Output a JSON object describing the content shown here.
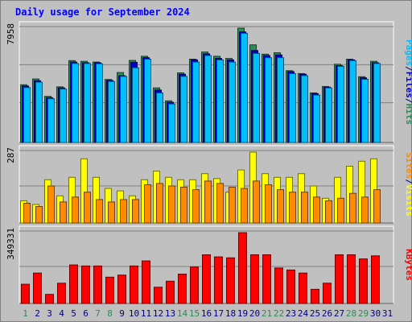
{
  "chart_data": {
    "type": "bar",
    "title": "Daily usage for September 2024",
    "categories": [
      "1",
      "2",
      "3",
      "4",
      "5",
      "6",
      "7",
      "8",
      "9",
      "10",
      "11",
      "12",
      "13",
      "14",
      "15",
      "16",
      "17",
      "18",
      "19",
      "20",
      "21",
      "22",
      "23",
      "24",
      "25",
      "26",
      "27",
      "28",
      "29",
      "30",
      "31"
    ],
    "weekend_days": [
      "1",
      "7",
      "8",
      "14",
      "15",
      "21",
      "22",
      "28",
      "29"
    ],
    "panels": [
      {
        "name": "hits-files-pages",
        "ymax_label": "7958",
        "ylim": [
          0,
          7958
        ],
        "axis_labels": [
          "Pages",
          "Files",
          "Hits"
        ],
        "series": [
          {
            "name": "Hits",
            "color": "#2e8b57",
            "values": [
              4020,
              4420,
              3210,
              3870,
              5700,
              5650,
              5600,
              4390,
              4870,
              5710,
              6000,
              3800,
              2900,
              4850,
              5800,
              6300,
              6000,
              5850,
              7958,
              6800,
              6150,
              6250,
              5000,
              4800,
              3450,
              3900,
              5450,
              5800,
              4580,
              5650,
              null
            ]
          },
          {
            "name": "Files",
            "color": "#0000cd",
            "values": [
              3930,
              4300,
              3120,
              3800,
              5600,
              5550,
              5550,
              4320,
              4650,
              5580,
              5900,
              3650,
              2800,
              4750,
              5750,
              6170,
              5850,
              5750,
              7700,
              6400,
              6050,
              6100,
              4930,
              4750,
              3400,
              3850,
              5350,
              5750,
              4500,
              5550,
              null
            ]
          },
          {
            "name": "Pages",
            "color": "#00bfff",
            "values": [
              3820,
              4200,
              3050,
              3720,
              5500,
              5500,
              5480,
              4250,
              4600,
              5200,
              5800,
              3450,
              2680,
              4600,
              5600,
              6050,
              5750,
              5600,
              7600,
              6200,
              5900,
              5900,
              4800,
              4650,
              3300,
              3800,
              5300,
              5700,
              4400,
              5500,
              null
            ]
          }
        ]
      },
      {
        "name": "visits-sites",
        "ymax_label": "287",
        "ylim": [
          0,
          287
        ],
        "axis_labels": [
          "Sites",
          "Visits"
        ],
        "series": [
          {
            "name": "Visits",
            "color": "#ffff00",
            "values": [
              90,
              75,
              175,
              110,
              185,
              260,
              185,
              140,
              130,
              110,
              175,
              210,
              185,
              175,
              175,
              200,
              180,
              125,
              215,
              287,
              200,
              185,
              185,
              200,
              150,
              100,
              185,
              230,
              250,
              260,
              null
            ]
          },
          {
            "name": "Sites",
            "color": "#ff8c00",
            "values": [
              80,
              67,
              150,
              85,
              105,
              125,
              95,
              85,
              95,
              95,
              155,
              160,
              150,
              145,
              135,
              170,
              160,
              145,
              140,
              170,
              155,
              135,
              125,
              125,
              105,
              90,
              100,
              120,
              105,
              135,
              null
            ]
          }
        ]
      },
      {
        "name": "kbytes",
        "ymax_label": "349331",
        "ylim": [
          0,
          349331
        ],
        "axis_labels": [
          "KBytes"
        ],
        "series": [
          {
            "name": "KBytes",
            "color": "#ff0000",
            "values": [
              95000,
              150000,
              45000,
              100000,
              190000,
              185000,
              185000,
              130000,
              140000,
              185000,
              210000,
              80000,
              110000,
              145000,
              180000,
              240000,
              230000,
              225000,
              349331,
              240000,
              240000,
              175000,
              165000,
              150000,
              70000,
              100000,
              240000,
              240000,
              220000,
              235000,
              null
            ]
          }
        ]
      }
    ],
    "legend": "right-side vertical labels",
    "grid": true
  },
  "colors": {
    "background": "#c0c0c0",
    "title": "#0000ff",
    "weekend_label": "#2e8b57",
    "weekday_label": "#000080",
    "gridline": "#808080"
  }
}
